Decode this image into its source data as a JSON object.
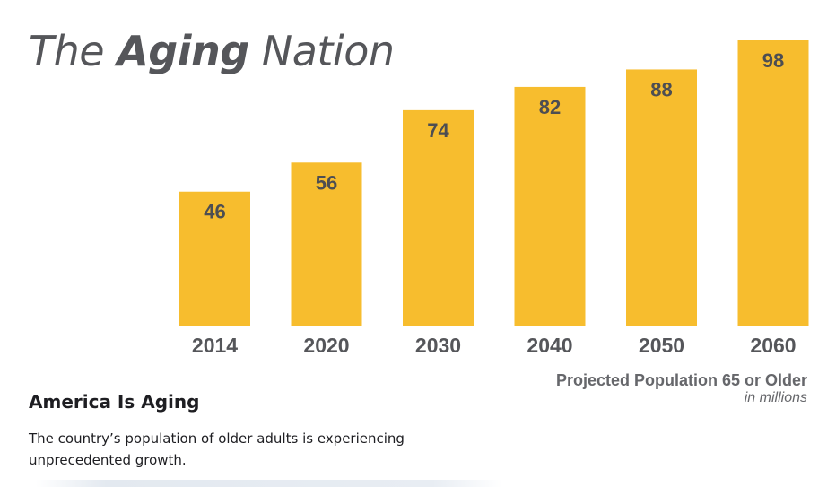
{
  "title": {
    "part1": "The ",
    "part2": "Aging",
    "part3": " Nation"
  },
  "chart_data": {
    "type": "bar",
    "categories": [
      "2014",
      "2020",
      "2030",
      "2040",
      "2050",
      "2060"
    ],
    "values": [
      46,
      56,
      74,
      82,
      88,
      98
    ],
    "title": "The Aging Nation",
    "xlabel": "Projected Population 65 or Older",
    "ylabel": "",
    "unit": "in millions",
    "ylim": [
      0,
      98
    ],
    "grid": false,
    "bar_color": "#f7bd2e"
  },
  "caption": {
    "main": "Projected Population 65 or Older",
    "unit": "in millions"
  },
  "section": {
    "heading": "America Is Aging",
    "body": "The country’s population of older adults is experiencing unprecedented growth."
  }
}
